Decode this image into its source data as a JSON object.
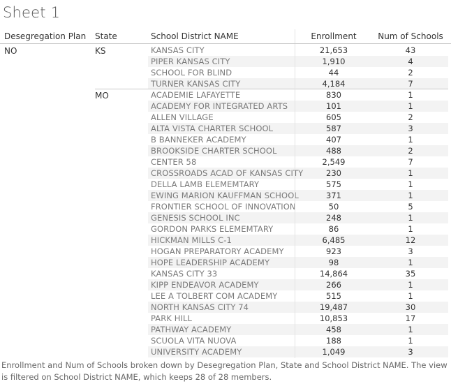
{
  "sheet_title": "Sheet 1",
  "headers": {
    "plan": "Desegregation Plan",
    "state": "State",
    "district": "School District NAME",
    "enrollment": "Enrollment",
    "schools": "Num of Schools"
  },
  "plan_value": "NO",
  "groups": [
    {
      "state": "KS",
      "rows": [
        {
          "name": "KANSAS CITY",
          "enrollment": "21,653",
          "schools": "43"
        },
        {
          "name": "PIPER KANSAS CITY",
          "enrollment": "1,910",
          "schools": "4"
        },
        {
          "name": "SCHOOL FOR BLIND",
          "enrollment": "44",
          "schools": "2"
        },
        {
          "name": "TURNER KANSAS CITY",
          "enrollment": "4,184",
          "schools": "7"
        }
      ]
    },
    {
      "state": "MO",
      "rows": [
        {
          "name": "ACADEMIE LAFAYETTE",
          "enrollment": "830",
          "schools": "1"
        },
        {
          "name": "ACADEMY FOR INTEGRATED ARTS",
          "enrollment": "101",
          "schools": "1"
        },
        {
          "name": "ALLEN VILLAGE",
          "enrollment": "605",
          "schools": "2"
        },
        {
          "name": "ALTA VISTA CHARTER SCHOOL",
          "enrollment": "587",
          "schools": "3"
        },
        {
          "name": "B BANNEKER ACADEMY",
          "enrollment": "407",
          "schools": "1"
        },
        {
          "name": "BROOKSIDE CHARTER SCHOOL",
          "enrollment": "488",
          "schools": "2"
        },
        {
          "name": "CENTER 58",
          "enrollment": "2,549",
          "schools": "7"
        },
        {
          "name": "CROSSROADS ACAD OF KANSAS CITY",
          "enrollment": "230",
          "schools": "1"
        },
        {
          "name": "DELLA LAMB ELEMEMTARY",
          "enrollment": "575",
          "schools": "1"
        },
        {
          "name": "EWING MARION KAUFFMAN SCHOOL",
          "enrollment": "371",
          "schools": "1"
        },
        {
          "name": "FRONTIER SCHOOL OF INNOVATION",
          "enrollment": "50",
          "schools": "5"
        },
        {
          "name": "GENESIS SCHOOL INC",
          "enrollment": "248",
          "schools": "1"
        },
        {
          "name": "GORDON PARKS ELEMEMTARY",
          "enrollment": "86",
          "schools": "1"
        },
        {
          "name": "HICKMAN MILLS C-1",
          "enrollment": "6,485",
          "schools": "12"
        },
        {
          "name": "HOGAN PREPARATORY ACADEMY",
          "enrollment": "923",
          "schools": "3"
        },
        {
          "name": "HOPE LEADERSHIP ACADEMY",
          "enrollment": "98",
          "schools": "1"
        },
        {
          "name": "KANSAS CITY 33",
          "enrollment": "14,864",
          "schools": "35"
        },
        {
          "name": "KIPP ENDEAVOR ACADEMY",
          "enrollment": "266",
          "schools": "1"
        },
        {
          "name": "LEE A TOLBERT COM ACADEMY",
          "enrollment": "515",
          "schools": "1"
        },
        {
          "name": "NORTH KANSAS CITY 74",
          "enrollment": "19,487",
          "schools": "30"
        },
        {
          "name": "PARK HILL",
          "enrollment": "10,853",
          "schools": "17"
        },
        {
          "name": "PATHWAY ACADEMY",
          "enrollment": "458",
          "schools": "1"
        },
        {
          "name": "SCUOLA VITA NUOVA",
          "enrollment": "188",
          "schools": "1"
        },
        {
          "name": "UNIVERSITY ACADEMY",
          "enrollment": "1,049",
          "schools": "3"
        }
      ]
    }
  ],
  "caption": "Enrollment and Num of Schools broken down by Desegregation Plan, State and School District NAME.  The view is filtered on School District NAME, which keeps 28 of 28 members."
}
